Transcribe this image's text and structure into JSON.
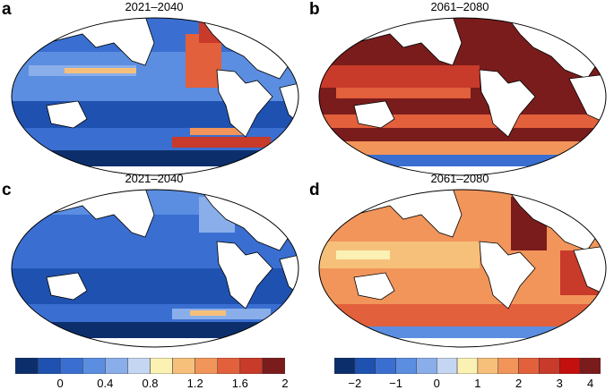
{
  "panels": [
    {
      "letter": "a",
      "title": "2021–2040"
    },
    {
      "letter": "b",
      "title": "2061–2080"
    },
    {
      "letter": "c",
      "title": "2021–2040"
    },
    {
      "letter": "d",
      "title": "2061–2080"
    }
  ],
  "colorbar_left": {
    "colors": [
      "#0c2f6b",
      "#1f52b0",
      "#3a6fd1",
      "#5b8ee0",
      "#8aaeea",
      "#c4d6f2",
      "#fbf1b3",
      "#f6c07a",
      "#f2955a",
      "#e2603c",
      "#c83a2a",
      "#7a1c1c"
    ],
    "ticks": [
      "0",
      "0.4",
      "0.8",
      "1.2",
      "1.6",
      "2"
    ]
  },
  "colorbar_right": {
    "colors": [
      "#0c2f6b",
      "#1f52b0",
      "#3a6fd1",
      "#5b8ee0",
      "#8aaeea",
      "#c4d6f2",
      "#fbf1b3",
      "#f6c07a",
      "#f2955a",
      "#e2603c",
      "#c83a2a",
      "#c40f0f",
      "#7a1c1c"
    ],
    "ticks": [
      "−2",
      "−1",
      "0",
      "1",
      "2",
      "3",
      "4"
    ]
  }
}
